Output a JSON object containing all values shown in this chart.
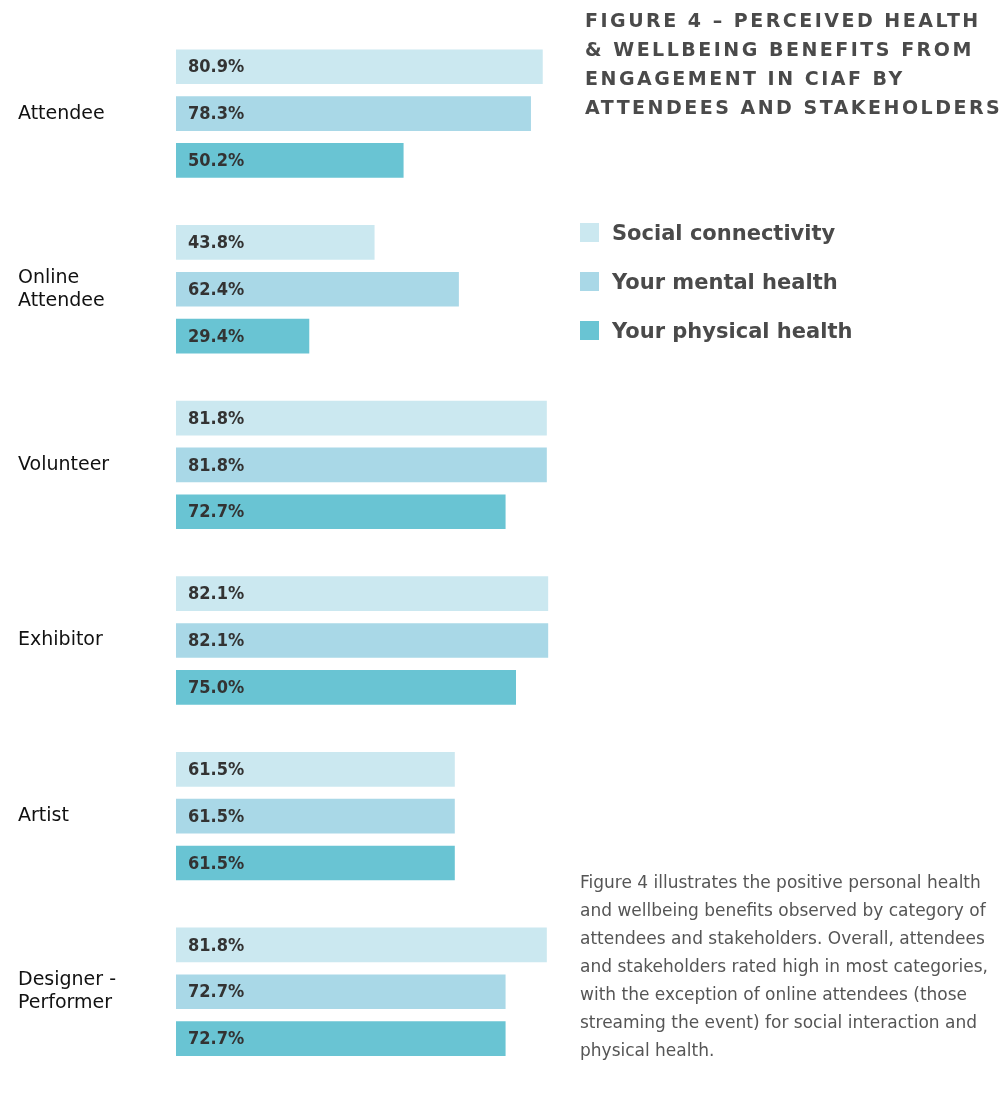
{
  "chart_data": {
    "type": "bar",
    "orientation": "horizontal",
    "title": "FIGURE 4 – PERCEIVED HEALTH & WELLBEING BENEFITS FROM ENGAGEMENT IN CIAF BY ATTENDEES AND STAKEHOLDERS",
    "categories": [
      "Attendee",
      "Online Attendee",
      "Volunteer",
      "Exhibitor",
      "Artist",
      "Designer - Performer"
    ],
    "series": [
      {
        "name": "Social connectivity",
        "color": "#cbe8f0",
        "values": [
          80.9,
          43.8,
          81.8,
          82.1,
          61.5,
          81.8
        ],
        "value_labels": [
          "80.9%",
          "43.8%",
          "81.8%",
          "82.1%",
          "61.5%",
          "81.8%"
        ]
      },
      {
        "name": "Your mental health",
        "color": "#a9d8e7",
        "values": [
          78.3,
          62.4,
          81.8,
          82.1,
          61.5,
          72.7
        ],
        "value_labels": [
          "78.3%",
          "62.4%",
          "81.8%",
          "82.1%",
          "61.5%",
          "72.7%"
        ]
      },
      {
        "name": "Your physical health",
        "color": "#69c4d3",
        "values": [
          50.2,
          29.4,
          72.7,
          75.0,
          61.5,
          72.7
        ],
        "value_labels": [
          "50.2%",
          "29.4%",
          "72.7%",
          "75.0%",
          "61.5%",
          "72.7%"
        ]
      }
    ],
    "tick_labels": "y",
    "legend": "right",
    "annotations": [
      "Figure 4 illustrates the positive personal health and wellbeing benefits observed by category of attendees and stakeholders. Overall, attendees and stakeholders rated high in most categories, with the exception of online attendees (those streaming the event) for social interaction and physical health."
    ]
  }
}
